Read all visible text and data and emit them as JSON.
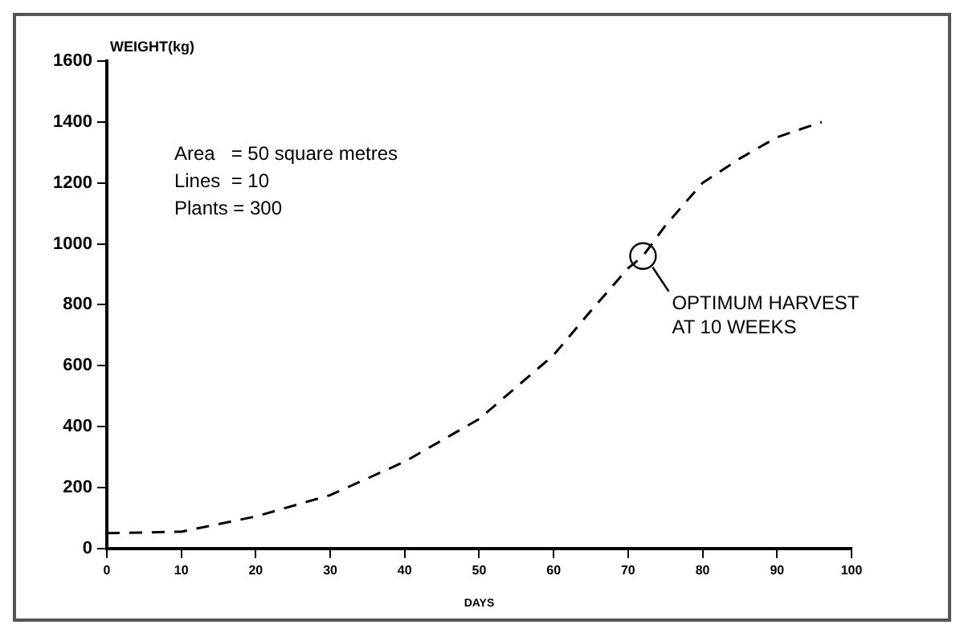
{
  "chart_data": {
    "type": "line",
    "xlabel": "DAYS",
    "ylabel": "WEIGHT(kg)",
    "x": [
      0,
      10,
      20,
      30,
      40,
      50,
      60,
      65,
      70,
      72,
      75,
      80,
      85,
      90,
      96
    ],
    "series": [
      {
        "color": "#000000",
        "values": [
          50,
          55,
          105,
          175,
          285,
          425,
          635,
          780,
          920,
          960,
          1060,
          1200,
          1280,
          1350,
          1400
        ]
      }
    ],
    "xlim": [
      0,
      100
    ],
    "xticks": [
      0,
      10,
      20,
      30,
      40,
      50,
      60,
      70,
      80,
      90,
      100
    ],
    "ylim": [
      0,
      1600
    ],
    "yticks": [
      0,
      200,
      400,
      600,
      800,
      1000,
      1200,
      1400,
      1600
    ],
    "grid": false,
    "legend": false,
    "marker": "none",
    "line_style": "dashed",
    "annotations": [
      "Area   = 50 square metres",
      "Lines  = 10",
      "Plants = 300",
      {
        "text": "OPTIMUM HARVEST\nAT 10 WEEKS",
        "x": 72,
        "y": 960
      }
    ]
  }
}
